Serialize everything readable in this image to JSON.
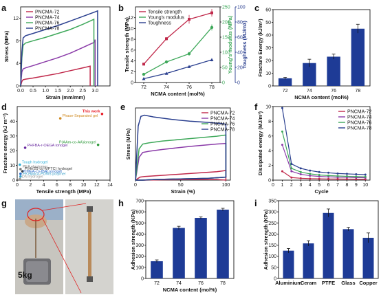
{
  "panel_labels": [
    "a",
    "b",
    "c",
    "d",
    "e",
    "f",
    "g",
    "h",
    "i"
  ],
  "colors": {
    "c72": "#c0284a",
    "c74": "#8a3aa8",
    "c76": "#3ea85a",
    "c78": "#2a3f8f",
    "bar": "#1e3b96",
    "ts": "#c0284a",
    "ym": "#3ea85a",
    "tough": "#2a3f8f"
  },
  "photo": {
    "weight_label": "5kg"
  },
  "chart_data": [
    {
      "id": "a",
      "type": "line",
      "xlabel": "Strain (mm/mm)",
      "ylabel": "Stress (MPa)",
      "xlim": [
        0,
        3.6
      ],
      "ylim": [
        0,
        14
      ],
      "xticks": [
        0,
        0.5,
        1,
        1.5,
        2,
        2.5,
        3
      ],
      "xticklabels": [
        "0.0",
        "0.5",
        "1.0",
        "1.5",
        "2.0",
        "2.5",
        "3.0"
      ],
      "yticks": [
        0,
        4,
        8,
        12
      ],
      "series": [
        {
          "name": "PNCMA-72",
          "x": [
            0,
            0.05,
            0.1,
            0.2,
            0.5,
            1.0,
            1.5,
            2.0,
            2.5,
            2.8,
            2.8
          ],
          "y": [
            0,
            0.8,
            1.1,
            1.2,
            1.4,
            1.8,
            2.2,
            2.7,
            3.2,
            3.5,
            0
          ]
        },
        {
          "name": "PNCMA-74",
          "x": [
            0,
            0.05,
            0.1,
            0.2,
            0.5,
            1.0,
            1.5,
            2.0,
            2.5,
            2.95,
            3.0,
            3.0
          ],
          "y": [
            0,
            2.5,
            3.0,
            3.2,
            3.6,
            4.3,
            5.0,
            5.8,
            6.8,
            7.7,
            8.2,
            0
          ]
        },
        {
          "name": "PNCMA-76",
          "x": [
            0,
            0.05,
            0.1,
            0.2,
            0.5,
            1.0,
            1.5,
            2.0,
            2.5,
            2.95,
            2.95
          ],
          "y": [
            0,
            5,
            7.2,
            7.6,
            8.0,
            8.6,
            9.3,
            10.0,
            10.9,
            11.8,
            0
          ]
        },
        {
          "name": "PNCMA-78",
          "x": [
            0,
            0.05,
            0.1,
            0.2,
            0.5,
            1.0,
            1.5,
            2.0,
            2.5,
            3.05,
            3.1,
            3.1
          ],
          "y": [
            0,
            6,
            8.5,
            8.9,
            9.3,
            10.0,
            10.7,
            11.5,
            12.3,
            13.2,
            13.3,
            0
          ]
        }
      ],
      "legend": "top-left"
    },
    {
      "id": "b",
      "type": "line",
      "xlabel": "NCMA content (mol%)",
      "ylabel": "Tensile strength (MPa)",
      "ylabel2": "Young's modulus (MPa)",
      "ylabel3": "Toughness (MJ/m3)",
      "categories": [
        "72",
        "74",
        "76",
        "78"
      ],
      "ylim": [
        0,
        14
      ],
      "yticks": [
        0,
        2,
        4,
        6,
        8,
        10,
        12
      ],
      "ylim2": [
        0,
        250
      ],
      "yticks2": [
        0,
        50,
        100,
        150,
        200,
        250
      ],
      "ylim3": [
        0,
        100
      ],
      "yticks3": [
        0,
        20,
        40,
        60,
        80,
        100
      ],
      "series": [
        {
          "name": "Tensile strength",
          "axis": 1,
          "values": [
            3.4,
            8.1,
            11.7,
            12.9
          ],
          "err": [
            0.2,
            0.3,
            0.8,
            0.7
          ]
        },
        {
          "name": "Young's modulus",
          "axis": 2,
          "values": [
            27,
            68,
            95,
            182
          ],
          "err": [
            3,
            5,
            6,
            10
          ]
        },
        {
          "name": "Toughness",
          "axis": 3,
          "values": [
            5,
            12,
            21,
            30
          ],
          "err": [
            0.5,
            1,
            1.5,
            2
          ]
        }
      ],
      "legend": "top-left"
    },
    {
      "id": "c",
      "type": "bar",
      "xlabel": "NCMA content (mol%)",
      "ylabel": "Fracture Energy (kJ/m²)",
      "categories": [
        "72",
        "74",
        "76",
        "78"
      ],
      "values": [
        6,
        18,
        23,
        45
      ],
      "err": [
        0.8,
        3,
        2,
        3.5
      ],
      "ylim": [
        0,
        60
      ],
      "yticks": [
        0,
        10,
        20,
        30,
        40,
        50,
        60
      ]
    },
    {
      "id": "d",
      "type": "scatter",
      "xlabel": "Tensile strength (MPa)",
      "ylabel": "Fracture energy (kJ m⁻²)",
      "xlim": [
        0,
        14
      ],
      "ylim": [
        0,
        50
      ],
      "xticks": [
        0,
        2,
        4,
        6,
        8,
        10,
        12,
        14
      ],
      "yticks": [
        0,
        10,
        20,
        30,
        40
      ],
      "points": [
        {
          "label": "This work",
          "x": 12.8,
          "y": 45,
          "color": "#e8202a"
        },
        {
          "label": "Phase-Separated gel",
          "x": 6.5,
          "y": 42,
          "color": "#d08a22"
        },
        {
          "label": "P(AAm-co-AA)ionogel",
          "x": 12.2,
          "y": 24,
          "color": "#2e9a3a"
        },
        {
          "label": "PHFBA-r-OEGA ionogel",
          "x": 1.2,
          "y": 22,
          "color": "#6a2aa0"
        },
        {
          "label": "Tough hydrogel",
          "x": 0.4,
          "y": 10.5,
          "color": "#2fb0d8"
        },
        {
          "label": "PEA elastomer",
          "x": 0.5,
          "y": 7.5,
          "color": "#7a7a7a"
        },
        {
          "label": "P(HeSS-co-MPTC) hydrogel",
          "x": 0.8,
          "y": 6.0,
          "color": "#3a3a3a"
        },
        {
          "label": "P(MEA-co-IBA) ionogel",
          "x": 0.5,
          "y": 4.3,
          "color": "#2a6ac8"
        },
        {
          "label": "Fe-Hpdca-PDMS polymer",
          "x": 0.5,
          "y": 2.5,
          "color": "#3aa0c8"
        },
        {
          "label": "DN hydrogel",
          "x": 0.4,
          "y": 0.8,
          "color": "#9a9a9a"
        }
      ]
    },
    {
      "id": "e",
      "type": "line",
      "xlabel": "Strain (%)",
      "ylabel": "Stress (MPa)",
      "xlim": [
        0,
        105
      ],
      "ylim": [
        0,
        12
      ],
      "xticks": [
        0,
        50,
        100
      ],
      "series": [
        {
          "name": "PNCMA-72",
          "x": [
            0,
            5,
            10,
            30,
            60,
            90,
            100,
            100,
            90,
            60,
            30,
            10,
            5,
            0
          ],
          "y": [
            0,
            0.5,
            0.6,
            0.8,
            1.1,
            1.4,
            1.6,
            0,
            0.1,
            0.1,
            0.05,
            0,
            0,
            0
          ]
        },
        {
          "name": "PNCMA-74",
          "x": [
            0,
            4,
            8,
            15,
            30,
            60,
            90,
            100,
            100,
            80,
            50,
            20,
            8,
            0
          ],
          "y": [
            0,
            3.8,
            4.6,
            4.8,
            5.1,
            5.6,
            6.0,
            6.1,
            0.5,
            0.3,
            0.2,
            0.1,
            0,
            0
          ]
        },
        {
          "name": "PNCMA-76",
          "x": [
            0,
            4,
            8,
            15,
            30,
            60,
            90,
            100,
            100,
            80,
            50,
            20,
            8,
            0
          ],
          "y": [
            0,
            5.2,
            6.0,
            6.2,
            6.5,
            6.9,
            7.3,
            7.5,
            0.5,
            0.3,
            0.2,
            0.1,
            0,
            0
          ]
        },
        {
          "name": "PNCMA-78",
          "x": [
            0,
            3,
            6,
            10,
            20,
            40,
            60,
            80,
            95,
            100,
            100,
            80,
            50,
            20,
            8,
            0
          ],
          "y": [
            0,
            9.0,
            10.6,
            10.8,
            10.5,
            10.1,
            9.8,
            9.6,
            9.4,
            9.3,
            0.5,
            0.3,
            0.2,
            0.1,
            0,
            0
          ]
        }
      ],
      "legend": "top-right"
    },
    {
      "id": "f",
      "type": "line",
      "xlabel": "Cycle",
      "ylabel": "Dissipated energy (MJ/m³)",
      "xlim": [
        0,
        10.5
      ],
      "ylim": [
        0,
        10
      ],
      "xticks": [
        0,
        1,
        2,
        3,
        4,
        5,
        6,
        7,
        8,
        9,
        10
      ],
      "yticks": [
        0,
        2,
        4,
        6,
        8,
        10
      ],
      "x": [
        1,
        2,
        3,
        4,
        5,
        6,
        7,
        8,
        9,
        10
      ],
      "series": [
        {
          "name": "PNCMA-72",
          "values": [
            1.2,
            0.35,
            0.25,
            0.2,
            0.18,
            0.16,
            0.15,
            0.14,
            0.13,
            0.12
          ]
        },
        {
          "name": "PNCMA-74",
          "values": [
            4.8,
            1.2,
            0.8,
            0.6,
            0.5,
            0.45,
            0.4,
            0.38,
            0.35,
            0.33
          ]
        },
        {
          "name": "PNCMA-76",
          "values": [
            6.6,
            1.6,
            1.1,
            0.85,
            0.7,
            0.62,
            0.56,
            0.52,
            0.48,
            0.45
          ]
        },
        {
          "name": "PNCMA-78",
          "values": [
            9.8,
            2.2,
            1.6,
            1.3,
            1.1,
            1.0,
            0.9,
            0.85,
            0.8,
            0.75
          ]
        }
      ],
      "legend": "top-right"
    },
    {
      "id": "h",
      "type": "bar",
      "xlabel": "NCMA content (mol%)",
      "ylabel": "Adhesion strength (KPa)",
      "categories": [
        "72",
        "74",
        "76",
        "78"
      ],
      "values": [
        155,
        455,
        545,
        620
      ],
      "err": [
        12,
        15,
        10,
        12
      ],
      "ylim": [
        0,
        700
      ],
      "yticks": [
        0,
        100,
        200,
        300,
        400,
        500,
        600,
        700
      ]
    },
    {
      "id": "i",
      "type": "bar",
      "xlabel": "",
      "ylabel": "Adhesion strength (KPa)",
      "categories": [
        "Aluminium",
        "Ceram",
        "PTFE",
        "Glass",
        "Copper"
      ],
      "values": [
        125,
        158,
        295,
        222,
        183
      ],
      "err": [
        10,
        12,
        18,
        8,
        22
      ],
      "ylim": [
        0,
        350
      ],
      "yticks": [
        0,
        50,
        100,
        150,
        200,
        250,
        300,
        350
      ]
    }
  ]
}
